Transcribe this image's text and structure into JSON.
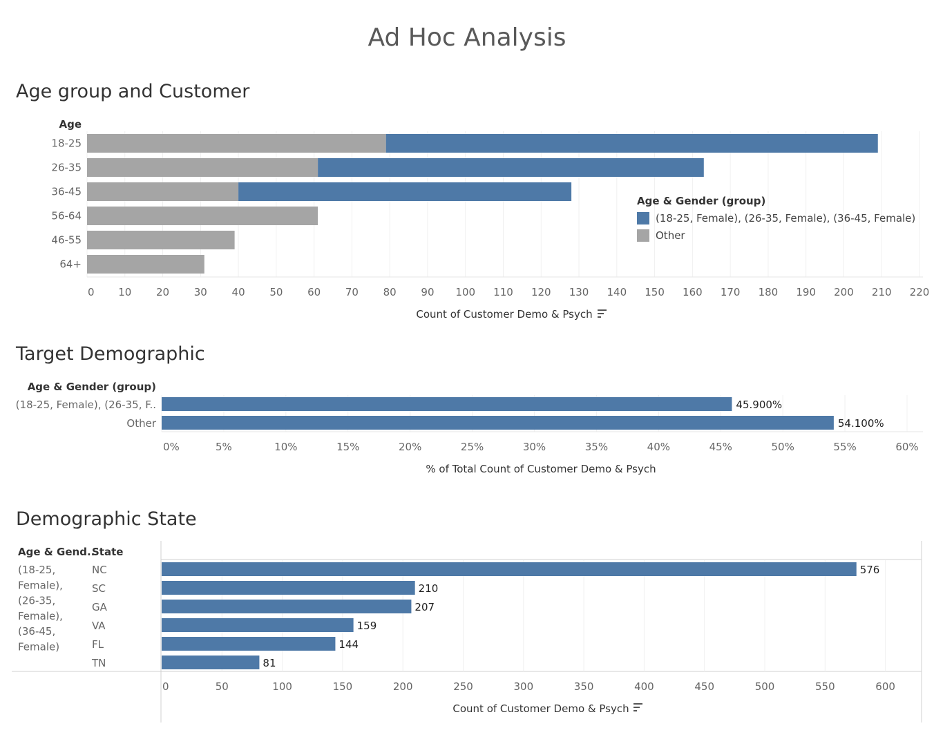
{
  "dashboard": {
    "title": "Ad Hoc Analysis"
  },
  "colors": {
    "target": "#4e79a7",
    "other": "#a5a5a5"
  },
  "chart_data": [
    {
      "type": "bar",
      "orientation": "horizontal",
      "stacked": true,
      "title": "Age group and Customer",
      "row_header": "Age",
      "categories": [
        "18-25",
        "26-35",
        "36-45",
        "56-64",
        "46-55",
        "64+"
      ],
      "series": [
        {
          "name": "Other",
          "values": [
            79,
            61,
            40,
            61,
            39,
            31
          ]
        },
        {
          "name": "(18-25, Female), (26-35, Female), (36-45, Female)",
          "values": [
            130,
            102,
            88,
            0,
            0,
            0
          ]
        }
      ],
      "xlabel": "Count of Customer Demo & Psych",
      "xlim": [
        0,
        220
      ],
      "xticks": [
        0,
        10,
        20,
        30,
        40,
        50,
        60,
        70,
        80,
        90,
        100,
        110,
        120,
        130,
        140,
        150,
        160,
        170,
        180,
        190,
        200,
        210,
        220
      ],
      "legend": {
        "title": "Age & Gender (group)",
        "position": "right",
        "items": [
          "(18-25, Female), (26-35, Female), (36-45, Female)",
          "Other"
        ]
      }
    },
    {
      "type": "bar",
      "orientation": "horizontal",
      "title": "Target Demographic",
      "row_header": "Age & Gender (group)",
      "categories": [
        "(18-25, Female), (26-35, F..",
        "Other"
      ],
      "values": [
        45.9,
        54.1
      ],
      "data_labels": [
        "45.900%",
        "54.100%"
      ],
      "xlabel": "% of Total Count of Customer Demo & Psych",
      "xlim": [
        0,
        60
      ],
      "xticks": [
        "0%",
        "5%",
        "10%",
        "15%",
        "20%",
        "25%",
        "30%",
        "35%",
        "40%",
        "45%",
        "50%",
        "55%",
        "60%"
      ]
    },
    {
      "type": "bar",
      "orientation": "horizontal",
      "title": "Demographic State",
      "row_headers": [
        "Age & Gend..",
        "State"
      ],
      "group_label": [
        "(18-25,",
        "Female),",
        "(26-35,",
        "Female),",
        "(36-45,",
        "Female)"
      ],
      "categories": [
        "NC",
        "SC",
        "GA",
        "VA",
        "FL",
        "TN"
      ],
      "values": [
        576,
        210,
        207,
        159,
        144,
        81
      ],
      "xlabel": "Count of Customer Demo & Psych",
      "xlim": [
        0,
        630
      ],
      "xticks": [
        0,
        50,
        100,
        150,
        200,
        250,
        300,
        350,
        400,
        450,
        500,
        550,
        600
      ]
    }
  ]
}
